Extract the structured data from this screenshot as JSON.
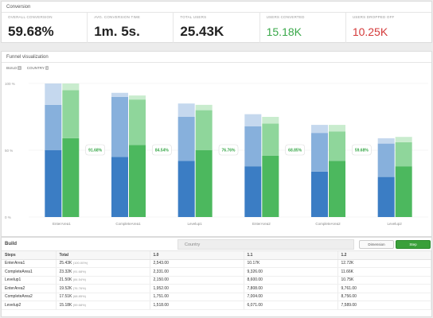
{
  "conversion": {
    "title": "Conversion",
    "kpis": [
      {
        "label": "OVERALL CONVERSION",
        "value": "59.68%",
        "style": "default"
      },
      {
        "label": "AVG. CONVERSION TIME",
        "value": "1m. 5s.",
        "style": "default"
      },
      {
        "label": "TOTAL USERS",
        "value": "25.43K",
        "style": "default"
      },
      {
        "label": "USERS CONVERTED",
        "value": "15.18K",
        "style": "green"
      },
      {
        "label": "USERS DROPPED OFF",
        "value": "10.25K",
        "style": "red"
      }
    ]
  },
  "funnel": {
    "title": "Funnel visualization",
    "filters": [
      {
        "label": "BUILD",
        "chip": "3"
      },
      {
        "label": "COUNTRY",
        "chip": "3"
      }
    ]
  },
  "chart_data": {
    "type": "bar",
    "categories": [
      "EnterArea1",
      "CompleteArea1",
      "Levelup1",
      "EnterArea2",
      "CompleteArea2",
      "Levelup2"
    ],
    "y_ticks": [
      {
        "label": "100 %",
        "value": 100
      },
      {
        "label": "50 %",
        "value": 50
      },
      {
        "label": "0 %",
        "value": 0
      }
    ],
    "ylim": [
      0,
      100
    ],
    "conversion_labels": [
      "91.68%",
      "84.54%",
      "76.76%",
      "68.85%",
      "59.68%"
    ],
    "series_pairs": [
      {
        "blue": [
          50,
          84,
          100
        ],
        "green": [
          59,
          95,
          100
        ]
      },
      {
        "blue": [
          45,
          90,
          93
        ],
        "green": [
          54,
          88,
          91
        ]
      },
      {
        "blue": [
          42,
          75,
          85
        ],
        "green": [
          50,
          80,
          84
        ]
      },
      {
        "blue": [
          38,
          68,
          77
        ],
        "green": [
          46,
          70,
          75
        ]
      },
      {
        "blue": [
          34,
          63,
          69
        ],
        "green": [
          42,
          64,
          69
        ]
      },
      {
        "blue": [
          30,
          55,
          59
        ],
        "green": [
          38,
          56,
          60
        ]
      }
    ],
    "colors": {
      "blue_dark": "#3b7dc4",
      "blue_mid": "#87b0dc",
      "blue_light": "#c5d8ee",
      "green_dark": "#4cb85e",
      "green_mid": "#8fd69b",
      "green_light": "#c9ecce"
    }
  },
  "build": {
    "title": "Build",
    "country_label": "Country",
    "dimension_button": "Dimension",
    "step_button": "Step",
    "columns": [
      "Steps",
      "Total",
      "1.0",
      "1.1",
      "1.2"
    ],
    "rows": [
      {
        "step": "EnterArea1",
        "total": "25.43K",
        "pct": "(100.00%)",
        "c1": "2,543.00",
        "c2": "10.17K",
        "c3": "12.72K"
      },
      {
        "step": "CompleteArea1",
        "total": "23.32K",
        "pct": "(91.68%)",
        "c1": "2,331.00",
        "c2": "9,326.00",
        "c3": "11.66K"
      },
      {
        "step": "Levelup1",
        "total": "21.50K",
        "pct": "(84.54%)",
        "c1": "2,150.00",
        "c2": "8,600.00",
        "c3": "10.75K"
      },
      {
        "step": "EnterArea2",
        "total": "19.52K",
        "pct": "(76.76%)",
        "c1": "1,952.00",
        "c2": "7,808.00",
        "c3": "9,761.00"
      },
      {
        "step": "CompleteArea2",
        "total": "17.51K",
        "pct": "(68.85%)",
        "c1": "1,751.00",
        "c2": "7,004.00",
        "c3": "8,756.00"
      },
      {
        "step": "Levelup2",
        "total": "15.18K",
        "pct": "(59.68%)",
        "c1": "1,518.00",
        "c2": "6,071.00",
        "c3": "7,589.00"
      }
    ]
  }
}
